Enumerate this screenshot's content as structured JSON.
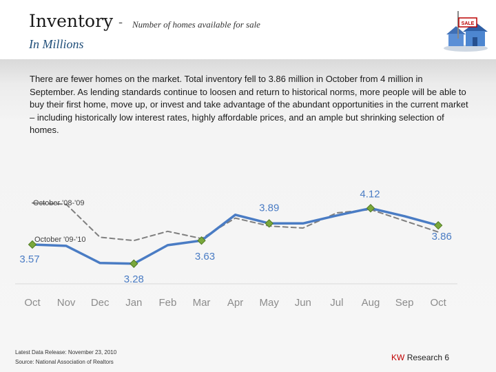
{
  "header": {
    "title": "Inventory",
    "dash": "-",
    "subtitle": "Number of homes available for sale",
    "units": "In Millions"
  },
  "icon": {
    "name": "house-for-sale-icon",
    "sign_text": "SALE"
  },
  "body_text": "There are fewer homes on the market. Total inventory fell to 3.86 million in October from 4 million in September. As lending standards continue to loosen and return to historical norms, more people will be able to buy their first home, move up, or invest and take advantage of the abundant opportunities in the current market – including historically low interest rates, highly affordable prices, and an ample but shrinking selection of homes.",
  "chart_data": {
    "type": "line",
    "title": "",
    "xlabel": "",
    "ylabel": "",
    "categories": [
      "Oct",
      "Nov",
      "Dec",
      "Jan",
      "Feb",
      "Mar",
      "Apr",
      "May",
      "Jun",
      "Jul",
      "Aug",
      "Sep",
      "Oct"
    ],
    "ylim": [
      3.1,
      4.3
    ],
    "grid": false,
    "series": [
      {
        "name": "October '09-'10",
        "style": "solid",
        "color": "#4a7cc4",
        "values": [
          3.57,
          3.55,
          3.29,
          3.28,
          3.56,
          3.63,
          4.02,
          3.89,
          3.89,
          4.01,
          4.12,
          4.0,
          3.86
        ],
        "markers": [
          0,
          3,
          5,
          7,
          10,
          12
        ],
        "data_labels": [
          {
            "index": 0,
            "text": "3.57"
          },
          {
            "index": 3,
            "text": "3.28"
          },
          {
            "index": 5,
            "text": "3.63"
          },
          {
            "index": 7,
            "text": "3.89"
          },
          {
            "index": 10,
            "text": "4.12"
          },
          {
            "index": 12,
            "text": "3.86"
          }
        ]
      },
      {
        "name": "October '08-'09",
        "style": "dashed",
        "color": "#7f7f7f",
        "values": [
          4.2,
          4.18,
          3.68,
          3.63,
          3.77,
          3.66,
          3.97,
          3.85,
          3.82,
          4.05,
          4.1,
          3.93,
          3.76
        ]
      }
    ],
    "marker_color": "#7aa83c"
  },
  "footer": {
    "release": "Latest Data Release: November 23, 2010",
    "source": "Source: National Association of Realtors",
    "brand": "KW",
    "tag": "Research 6"
  }
}
